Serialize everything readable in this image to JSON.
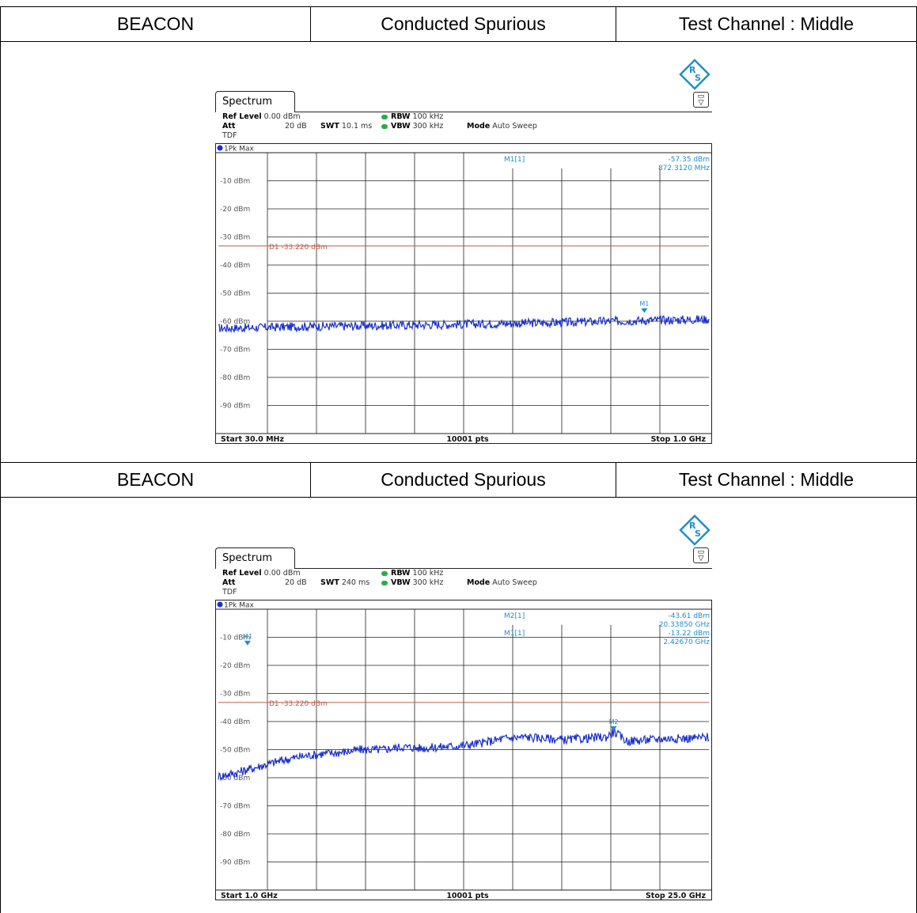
{
  "rows": [
    {
      "mode": "BEACON",
      "test": "Conducted Spurious",
      "channel": "Test Channel : Middle"
    },
    {
      "mode": "BEACON",
      "test": "Conducted Spurious",
      "channel": "Test Channel : Middle"
    }
  ],
  "colors": {
    "trace": "#1a2fd0",
    "grid": "#222222",
    "threshold": "#b85a4a",
    "marker": "#1f8fc8",
    "label": "#555555",
    "status_dot": "#2faa48"
  },
  "icons": [
    "rs-logo-icon",
    "menu-icon"
  ],
  "spectra": [
    {
      "tab": "Spectrum",
      "ref_level_label": "Ref Level",
      "ref_level": "0.00 dBm",
      "att_label": "Att",
      "att": "20 dB",
      "tdf": "TDF",
      "swt_label": "SWT",
      "swt": "10.1 ms",
      "rbw_label": "RBW",
      "rbw": "100 kHz",
      "vbw_label": "VBW",
      "vbw": "300 kHz",
      "mode_label": "Mode",
      "mode": "Auto Sweep",
      "trace_label": "1Pk Max",
      "start": "Start 30.0 MHz",
      "points": "10001 pts",
      "stop": "Stop 1.0 GHz"
    },
    {
      "tab": "Spectrum",
      "ref_level_label": "Ref Level",
      "ref_level": "0.00 dBm",
      "att_label": "Att",
      "att": "20 dB",
      "tdf": "TDF",
      "swt_label": "SWT",
      "swt": "240 ms",
      "rbw_label": "RBW",
      "rbw": "100 kHz",
      "vbw_label": "VBW",
      "vbw": "300 kHz",
      "mode_label": "Mode",
      "mode": "Auto Sweep",
      "trace_label": "1Pk Max",
      "start": "Start 1.0 GHz",
      "points": "10001 pts",
      "stop": "Stop 25.0 GHz"
    }
  ],
  "chart_data": [
    {
      "type": "line",
      "x_unit": "MHz",
      "y_unit": "dBm",
      "xlim": [
        30,
        1000
      ],
      "ylim": [
        -100,
        0
      ],
      "grid": true,
      "ytick_labels": [
        "-10 dBm",
        "-20 dBm",
        "-30 dBm",
        "-40 dBm",
        "-50 dBm",
        "-60 dBm",
        "-70 dBm",
        "-80 dBm",
        "-90 dBm"
      ],
      "threshold": {
        "label": "D1 -33.220 dBm",
        "value": -33.22
      },
      "markers": [
        {
          "name": "M1",
          "readout": "M1[1]",
          "x": 872.312,
          "y": -57.35,
          "readout_y": "-57.35 dBm",
          "readout_x": "872.3120 MHz"
        }
      ],
      "series": [
        {
          "x": [
            30,
            100,
            200,
            300,
            400,
            500,
            600,
            700,
            800,
            900,
            1000
          ],
          "y": [
            -62.5,
            -62.3,
            -61.9,
            -61.7,
            -61.4,
            -61.1,
            -60.8,
            -60.5,
            -60.0,
            -59.6,
            -59.3
          ]
        }
      ]
    },
    {
      "type": "line",
      "x_unit": "GHz",
      "y_unit": "dBm",
      "xlim": [
        1,
        25
      ],
      "ylim": [
        -100,
        0
      ],
      "grid": true,
      "ytick_labels": [
        "-10 dBm",
        "-20 dBm",
        "-30 dBm",
        "-40 dBm",
        "-50 dBm",
        "-60 dBm",
        "-70 dBm",
        "-80 dBm",
        "-90 dBm"
      ],
      "threshold": {
        "label": "D1 -33.220 dBm",
        "value": -33.22
      },
      "markers": [
        {
          "name": "M1",
          "readout": "M1[1]",
          "x": 2.4267,
          "y": -13.22,
          "readout_y": "-13.22 dBm",
          "readout_x": "2.42670 GHz"
        },
        {
          "name": "M2",
          "readout": "M2[1]",
          "x": 20.3385,
          "y": -43.61,
          "readout_y": "-43.61 dBm",
          "readout_x": "20.33850 GHz"
        }
      ],
      "series": [
        {
          "x": [
            1,
            2,
            3,
            4,
            5,
            6,
            7,
            8,
            9,
            10,
            11,
            12,
            13,
            14,
            15,
            16,
            17,
            18,
            19,
            20,
            20.34,
            21,
            22,
            23,
            24,
            25
          ],
          "y": [
            -59.5,
            -58.0,
            -56.0,
            -54.0,
            -52.5,
            -51.5,
            -51.0,
            -50.0,
            -50.0,
            -49.0,
            -49.5,
            -49.0,
            -48.5,
            -47.5,
            -46.0,
            -45.5,
            -46.0,
            -46.5,
            -46.0,
            -45.5,
            -43.61,
            -47.0,
            -46.5,
            -46.0,
            -46.0,
            -45.5
          ]
        }
      ]
    }
  ]
}
